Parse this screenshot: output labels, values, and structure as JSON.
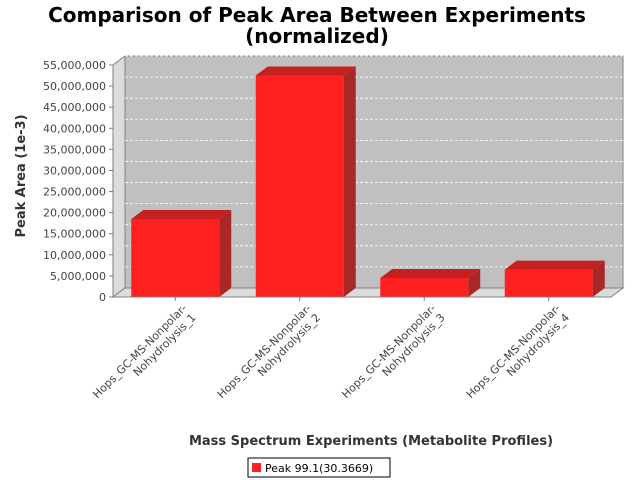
{
  "chart_data": {
    "type": "bar",
    "title_line1": "Comparison of Peak Area Between Experiments",
    "title_line2": "(normalized)",
    "xlabel": "Mass Spectrum Experiments (Metabolite Profiles)",
    "ylabel": "Peak Area (1e-3)",
    "ylim": [
      0,
      55000000
    ],
    "yticks": [
      0,
      5000000,
      10000000,
      15000000,
      20000000,
      25000000,
      30000000,
      35000000,
      40000000,
      45000000,
      50000000,
      55000000
    ],
    "ytick_labels": [
      "0",
      "5,000,000",
      "10,000,000",
      "15,000,000",
      "20,000,000",
      "25,000,000",
      "30,000,000",
      "35,000,000",
      "40,000,000",
      "45,000,000",
      "50,000,000",
      "55,000,000"
    ],
    "categories": [
      [
        "Hops_GC-MS-Nonpolar-",
        "Nohydrolysis_1"
      ],
      [
        "Hops_GC-MS-Nonpolar-",
        "Nohydrolysis_2"
      ],
      [
        "Hops_GC-MS-Nonpolar-",
        "Nohydrolysis_3"
      ],
      [
        "Hops_GC-MS-Nonpolar-",
        "Nohydrolysis_4"
      ]
    ],
    "series": [
      {
        "name": "Peak 99.1(30.3669)",
        "values": [
          18500000,
          52500000,
          4500000,
          6500000
        ],
        "color": "#ff2020"
      }
    ],
    "grid": true,
    "legend_position": "bottom-center"
  }
}
